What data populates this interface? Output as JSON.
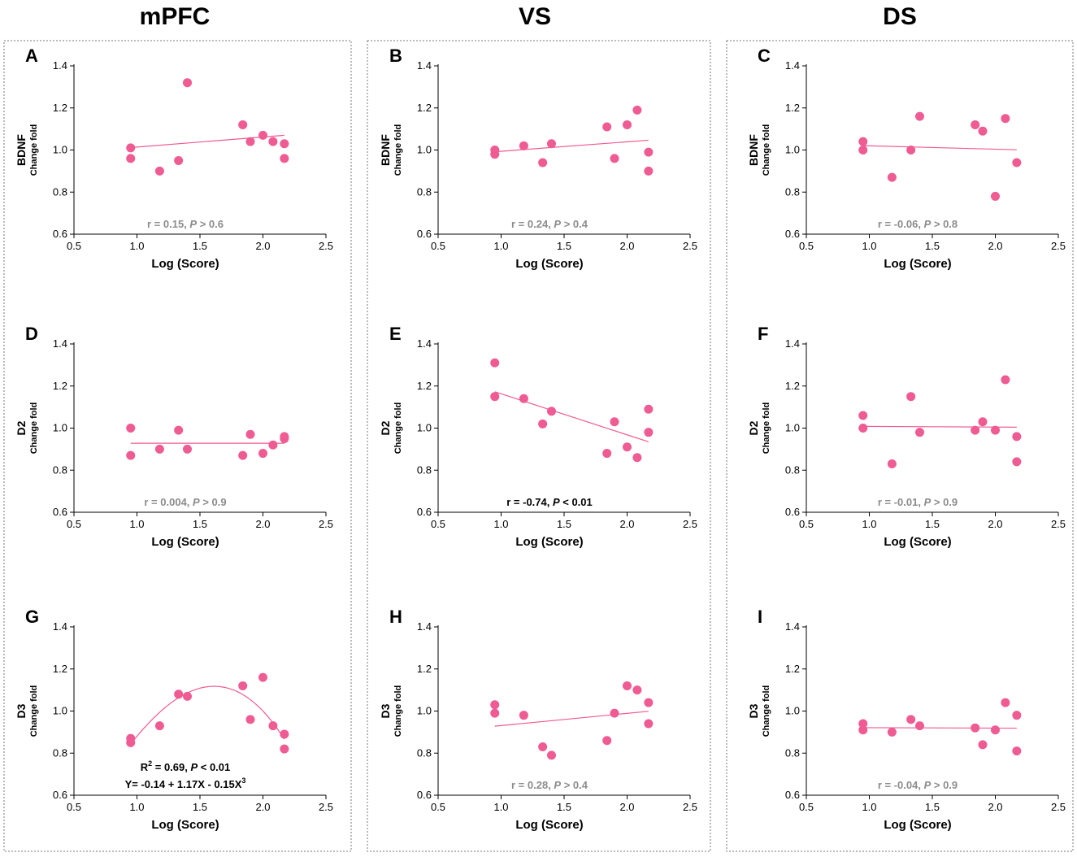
{
  "colors": {
    "point": "#ef5b93",
    "line": "#ef5b93",
    "axis": "#000000",
    "stat_ns": "#8c8c8c",
    "stat_sig": "#000000",
    "box": "#777777"
  },
  "columns": [
    "mPFC",
    "VS",
    "DS"
  ],
  "axes": {
    "xlabel": "Log (Score)",
    "y_sub": "Change fold",
    "x_ticks": [
      "0.5",
      "1.0",
      "1.5",
      "2.0",
      "2.5"
    ],
    "y_ticks": [
      "0.6",
      "0.8",
      "1.0",
      "1.2",
      "1.4"
    ]
  },
  "chart_data": [
    {
      "panel": "A",
      "type": "scatter",
      "region": "mPFC",
      "gene": "BDNF",
      "xlabel": "Log (Score)",
      "ylabel": "BDNF Change fold",
      "xlim": [
        0.5,
        2.5
      ],
      "ylim": [
        0.6,
        1.4
      ],
      "x": [
        0.95,
        0.95,
        1.18,
        1.33,
        1.4,
        1.84,
        1.9,
        2.0,
        2.08,
        2.17,
        2.17
      ],
      "y": [
        1.01,
        0.96,
        0.9,
        0.95,
        1.32,
        1.12,
        1.04,
        1.07,
        1.04,
        1.03,
        0.96
      ],
      "fit": {
        "type": "linear",
        "intercept": 0.966,
        "slope": 0.048,
        "x_range": [
          0.95,
          2.17
        ]
      },
      "stat": {
        "r_text": "r = 0.15, ",
        "p_label": "P",
        "p_text": " > 0.6",
        "significant": false
      }
    },
    {
      "panel": "B",
      "type": "scatter",
      "region": "VS",
      "gene": "BDNF",
      "xlabel": "Log (Score)",
      "ylabel": "BDNF Change fold",
      "xlim": [
        0.5,
        2.5
      ],
      "ylim": [
        0.6,
        1.4
      ],
      "x": [
        0.95,
        0.95,
        1.18,
        1.33,
        1.4,
        1.84,
        1.9,
        2.0,
        2.08,
        2.17,
        2.17
      ],
      "y": [
        1.0,
        0.98,
        1.02,
        0.94,
        1.03,
        1.11,
        0.96,
        1.12,
        1.19,
        0.99,
        0.9
      ],
      "fit": {
        "type": "linear",
        "intercept": 0.949,
        "slope": 0.045,
        "x_range": [
          0.95,
          2.17
        ]
      },
      "stat": {
        "r_text": "r = 0.24, ",
        "p_label": "P",
        "p_text": " > 0.4",
        "significant": false
      }
    },
    {
      "panel": "C",
      "type": "scatter",
      "region": "DS",
      "gene": "BDNF",
      "xlabel": "Log (Score)",
      "ylabel": "BDNF Change fold",
      "xlim": [
        0.5,
        2.5
      ],
      "ylim": [
        0.6,
        1.4
      ],
      "x": [
        0.95,
        0.95,
        1.18,
        1.33,
        1.4,
        1.84,
        1.9,
        2.0,
        2.08,
        2.17
      ],
      "y": [
        1.04,
        1.0,
        0.87,
        1.0,
        1.16,
        1.12,
        1.09,
        0.78,
        1.15,
        0.94
      ],
      "fit": {
        "type": "linear",
        "intercept": 1.036,
        "slope": -0.016,
        "x_range": [
          0.95,
          2.17
        ]
      },
      "stat": {
        "r_text": "r = -0.06, ",
        "p_label": "P",
        "p_text": " > 0.8",
        "significant": false
      }
    },
    {
      "panel": "D",
      "type": "scatter",
      "region": "mPFC",
      "gene": "D2",
      "xlabel": "Log (Score)",
      "ylabel": "D2 Change fold",
      "xlim": [
        0.5,
        2.5
      ],
      "ylim": [
        0.6,
        1.4
      ],
      "x": [
        0.95,
        0.95,
        1.18,
        1.33,
        1.4,
        1.84,
        1.9,
        2.0,
        2.08,
        2.17,
        2.17
      ],
      "y": [
        1.0,
        0.87,
        0.9,
        0.99,
        0.9,
        0.87,
        0.97,
        0.88,
        0.92,
        0.96,
        0.95
      ],
      "fit": {
        "type": "linear",
        "intercept": 0.928,
        "slope": 0.0,
        "x_range": [
          0.95,
          2.17
        ]
      },
      "stat": {
        "r_text": "r = 0.004, ",
        "p_label": "P",
        "p_text": " > 0.9",
        "significant": false
      }
    },
    {
      "panel": "E",
      "type": "scatter",
      "region": "VS",
      "gene": "D2",
      "xlabel": "Log (Score)",
      "ylabel": "D2 Change fold",
      "xlim": [
        0.5,
        2.5
      ],
      "ylim": [
        0.6,
        1.4
      ],
      "x": [
        0.95,
        0.95,
        1.18,
        1.33,
        1.4,
        1.84,
        1.9,
        2.0,
        2.08,
        2.17,
        2.17
      ],
      "y": [
        1.31,
        1.15,
        1.14,
        1.02,
        1.08,
        0.88,
        1.03,
        0.91,
        0.86,
        1.09,
        0.98
      ],
      "fit": {
        "type": "linear",
        "intercept": 1.358,
        "slope": -0.195,
        "x_range": [
          0.95,
          2.17
        ]
      },
      "stat": {
        "r_text": "r = -0.74, ",
        "p_label": "P",
        "p_text": " < 0.01",
        "significant": true
      }
    },
    {
      "panel": "F",
      "type": "scatter",
      "region": "DS",
      "gene": "D2",
      "xlabel": "Log (Score)",
      "ylabel": "D2 Change fold",
      "xlim": [
        0.5,
        2.5
      ],
      "ylim": [
        0.6,
        1.4
      ],
      "x": [
        0.95,
        0.95,
        1.18,
        1.33,
        1.4,
        1.84,
        1.9,
        2.0,
        2.08,
        2.17,
        2.17
      ],
      "y": [
        1.06,
        1.0,
        0.83,
        1.15,
        0.98,
        0.99,
        1.03,
        0.99,
        1.23,
        0.96,
        0.84
      ],
      "fit": {
        "type": "linear",
        "intercept": 1.011,
        "slope": -0.003,
        "x_range": [
          0.95,
          2.17
        ]
      },
      "stat": {
        "r_text": "r = -0.01, ",
        "p_label": "P",
        "p_text": " > 0.9",
        "significant": false
      }
    },
    {
      "panel": "G",
      "type": "scatter",
      "region": "mPFC",
      "gene": "D3",
      "xlabel": "Log (Score)",
      "ylabel": "D3 Change fold",
      "xlim": [
        0.5,
        2.5
      ],
      "ylim": [
        0.6,
        1.4
      ],
      "x": [
        0.95,
        0.95,
        1.18,
        1.33,
        1.4,
        1.84,
        1.9,
        2.0,
        2.08,
        2.17,
        2.17
      ],
      "y": [
        0.87,
        0.85,
        0.93,
        1.08,
        1.07,
        1.12,
        0.96,
        1.16,
        0.93,
        0.89,
        0.82
      ],
      "fit": {
        "type": "cubic",
        "a": -0.14,
        "b": 1.17,
        "d": -0.15,
        "x_range": [
          0.95,
          2.17
        ]
      },
      "stat": {
        "r_text": "R",
        "sup": "2",
        "r_text2": " = 0.69, ",
        "p_label": "P",
        "p_text": " < 0.01",
        "eq_text": "Y= -0.14 + 1.17X - 0.15X",
        "eq_sup": "3",
        "significant": true
      }
    },
    {
      "panel": "H",
      "type": "scatter",
      "region": "VS",
      "gene": "D3",
      "xlabel": "Log (Score)",
      "ylabel": "D3 Change fold",
      "xlim": [
        0.5,
        2.5
      ],
      "ylim": [
        0.6,
        1.4
      ],
      "x": [
        0.95,
        0.95,
        1.18,
        1.33,
        1.4,
        1.84,
        1.9,
        2.0,
        2.08,
        2.17,
        2.17
      ],
      "y": [
        1.03,
        0.99,
        0.98,
        0.83,
        0.79,
        0.86,
        0.99,
        1.12,
        1.1,
        1.04,
        0.94
      ],
      "fit": {
        "type": "linear",
        "intercept": 0.873,
        "slope": 0.058,
        "x_range": [
          0.95,
          2.17
        ]
      },
      "stat": {
        "r_text": "r = 0.28, ",
        "p_label": "P",
        "p_text": " > 0.4",
        "significant": false
      }
    },
    {
      "panel": "I",
      "type": "scatter",
      "region": "DS",
      "gene": "D3",
      "xlabel": "Log (Score)",
      "ylabel": "D3 Change fold",
      "xlim": [
        0.5,
        2.5
      ],
      "ylim": [
        0.6,
        1.4
      ],
      "x": [
        0.95,
        0.95,
        1.18,
        1.33,
        1.4,
        1.84,
        1.9,
        2.0,
        2.08,
        2.17,
        2.17
      ],
      "y": [
        0.94,
        0.91,
        0.9,
        0.96,
        0.93,
        0.92,
        0.84,
        0.91,
        1.04,
        0.98,
        0.81
      ],
      "fit": {
        "type": "linear",
        "intercept": 0.923,
        "slope": -0.002,
        "x_range": [
          0.95,
          2.17
        ]
      },
      "stat": {
        "r_text": "r = -0.04, ",
        "p_label": "P",
        "p_text": " > 0.9",
        "significant": false
      }
    }
  ]
}
